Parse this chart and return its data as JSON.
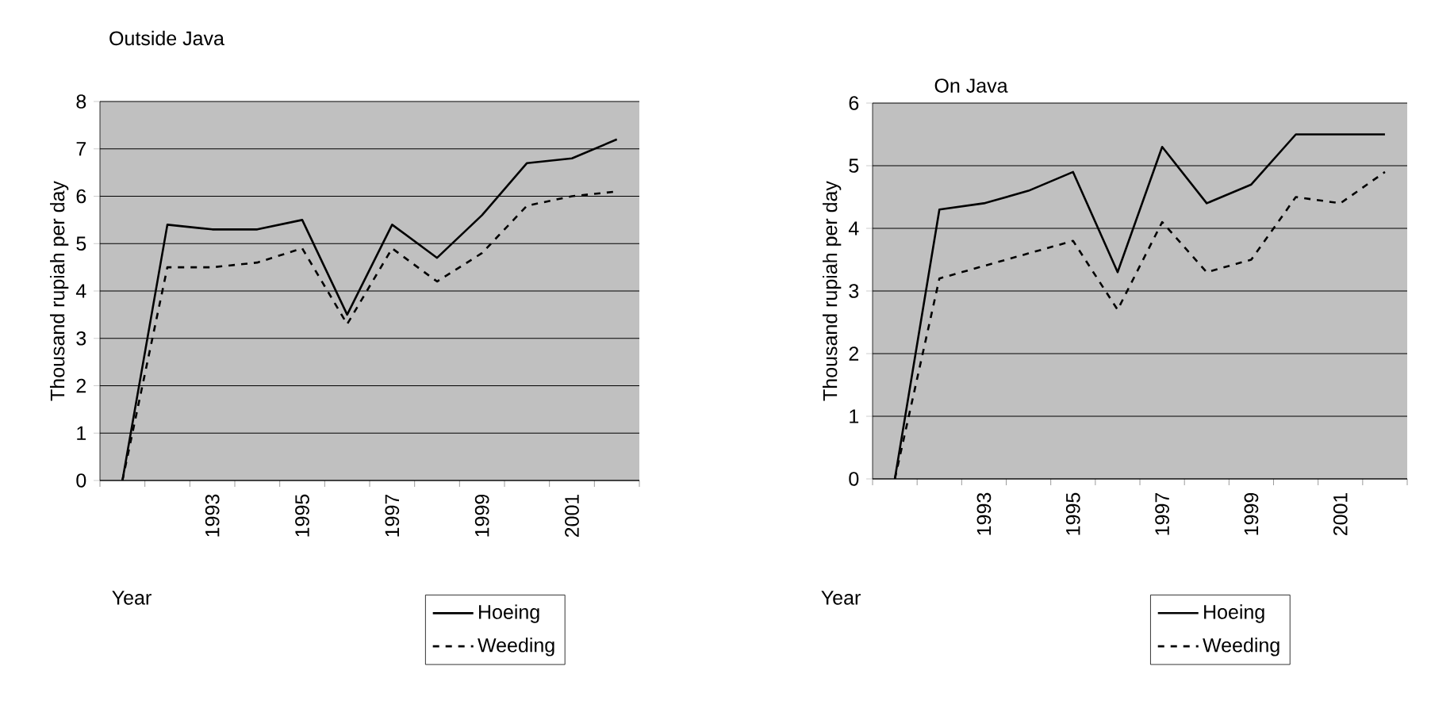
{
  "chart_data": [
    {
      "type": "line",
      "title": "Outside Java",
      "xlabel": "Year",
      "ylabel": "Thousand rupiah per day",
      "categories": [
        null,
        null,
        "1993",
        null,
        "1995",
        null,
        "1997",
        null,
        "1999",
        null,
        "2001",
        null
      ],
      "series": [
        {
          "name": "Hoeing",
          "color": "#000000",
          "line_style": "solid",
          "values": [
            0,
            5.4,
            5.3,
            5.3,
            5.5,
            3.5,
            5.4,
            4.7,
            5.6,
            6.7,
            6.8,
            7.2
          ]
        },
        {
          "name": "Weeding",
          "color": "#000000",
          "line_style": "dashed",
          "values": [
            0,
            4.5,
            4.5,
            4.6,
            4.9,
            3.3,
            4.9,
            4.2,
            4.8,
            5.8,
            6.0,
            6.1
          ]
        }
      ],
      "ylim": [
        0,
        8
      ],
      "yticks": [
        0,
        1,
        2,
        3,
        4,
        5,
        6,
        7,
        8
      ],
      "grid": "y",
      "legend": "bottom right",
      "marker": "none"
    },
    {
      "type": "line",
      "title": "On Java",
      "xlabel": "Year",
      "ylabel": "Thousand rupiah per day",
      "categories": [
        null,
        null,
        "1993",
        null,
        "1995",
        null,
        "1997",
        null,
        "1999",
        null,
        "2001",
        null
      ],
      "series": [
        {
          "name": "Hoeing",
          "color": "#000000",
          "line_style": "solid",
          "values": [
            0,
            4.3,
            4.4,
            4.6,
            4.9,
            3.3,
            5.3,
            4.4,
            4.7,
            5.5,
            5.5,
            5.5
          ]
        },
        {
          "name": "Weeding",
          "color": "#000000",
          "line_style": "dashed",
          "values": [
            0,
            3.2,
            3.4,
            3.6,
            3.8,
            2.7,
            4.1,
            3.3,
            3.5,
            4.5,
            4.4,
            4.9
          ]
        }
      ],
      "ylim": [
        0,
        6
      ],
      "yticks": [
        0,
        1,
        2,
        3,
        4,
        5,
        6
      ],
      "grid": "y",
      "legend": "bottom right",
      "marker": "none"
    }
  ]
}
